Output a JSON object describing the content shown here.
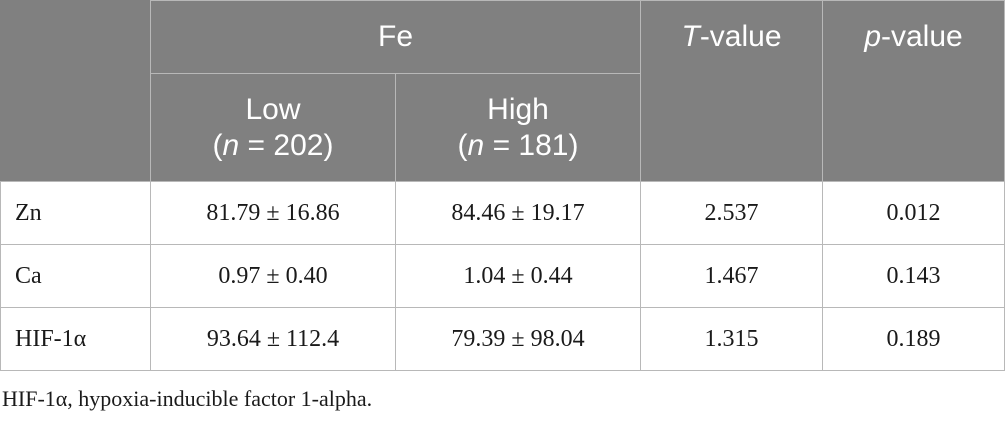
{
  "header": {
    "group_label": "Fe",
    "t_value_italic": "T",
    "t_value_rest": "-value",
    "p_value_italic": "p",
    "p_value_rest": "-value",
    "low_label": "Low",
    "low_n_italic": "n",
    "low_n_rest": " = 202)",
    "high_label": "High",
    "high_n_italic": "n",
    "high_n_rest": " = 181)"
  },
  "rows": [
    {
      "label": "Zn",
      "low": "81.79 ± 16.86",
      "high": "84.46 ± 19.17",
      "t": "2.537",
      "p": "0.012"
    },
    {
      "label": "Ca",
      "low": "0.97 ± 0.40",
      "high": "1.04 ± 0.44",
      "t": "1.467",
      "p": "0.143"
    },
    {
      "label": "HIF-1α",
      "low": "93.64 ± 112.4",
      "high": "79.39 ± 98.04",
      "t": "1.315",
      "p": "0.189"
    }
  ],
  "footnote": "HIF-1α, hypoxia-inducible factor 1-alpha."
}
